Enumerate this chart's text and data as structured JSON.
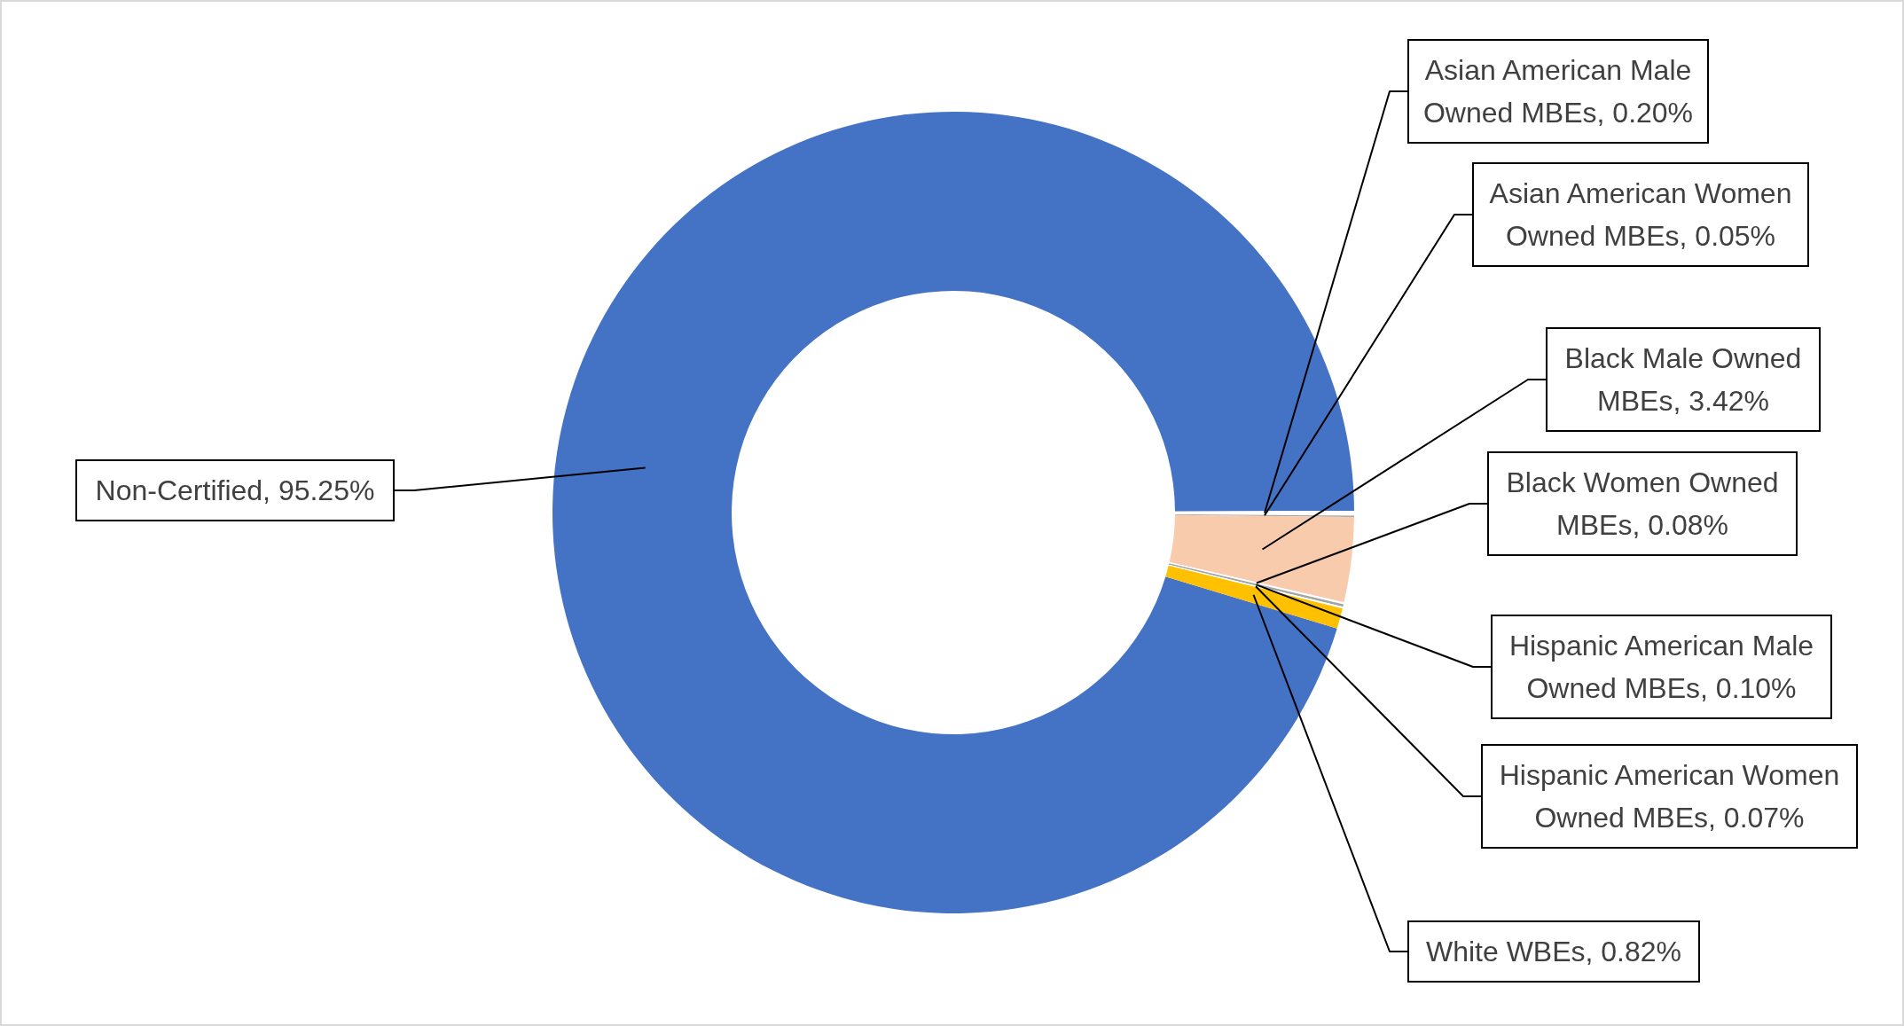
{
  "chart_data": {
    "type": "donut",
    "categories": [
      "Non-Certified",
      "Asian American Male Owned MBEs",
      "Asian American Women Owned MBEs",
      "Black Male Owned MBEs",
      "Black Women Owned MBEs",
      "Hispanic American Male Owned MBEs",
      "Hispanic American Women Owned MBEs",
      "White WBEs"
    ],
    "values": [
      95.25,
      0.2,
      0.05,
      3.42,
      0.08,
      0.1,
      0.07,
      0.82
    ],
    "value_labels": [
      "95.25%",
      "0.20%",
      "0.05%",
      "3.42%",
      "0.08%",
      "0.10%",
      "0.07%",
      "0.82%"
    ],
    "colors": [
      "#4472c4",
      "#ffffff",
      "#a5a5a5",
      "#f8cbad",
      "#ffffff",
      "#a5a5a5",
      "#ffffff",
      "#ffc000"
    ]
  }
}
